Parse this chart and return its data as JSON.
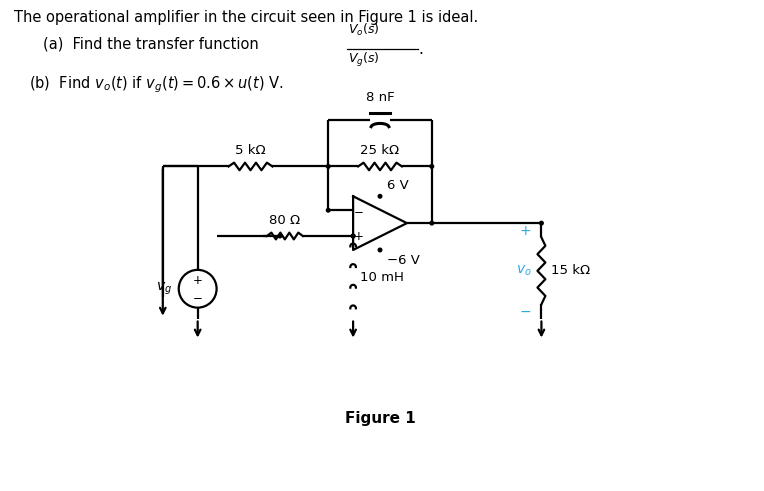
{
  "title_text": "The operational amplifier in the circuit seen in Figure 1 is ideal.",
  "part_a_prefix": "(a)  Find the transfer function ",
  "part_a_num": "V_o(s)",
  "part_a_den": "V_g(s)",
  "part_b": "(b)  Find $v_o(t)$ if $v_g(t) = 0.6 \\times u(t)$ V.",
  "figure_label": "Figure 1",
  "bg_color": "#ffffff",
  "text_color": "#000000",
  "cyan_color": "#29abe2",
  "lw": 1.6,
  "dot_r": 0.018,
  "R1_label": "5 kΩ",
  "R2_label": "25 kΩ",
  "R3_label": "80 Ω",
  "C_label": "8 nF",
  "L_label": "10 mH",
  "R4_label": "15 kΩ",
  "V6_label": "6 V",
  "Vm6_label": "−6 V",
  "Vg_label": "v_g",
  "Vo_label": "v_o"
}
